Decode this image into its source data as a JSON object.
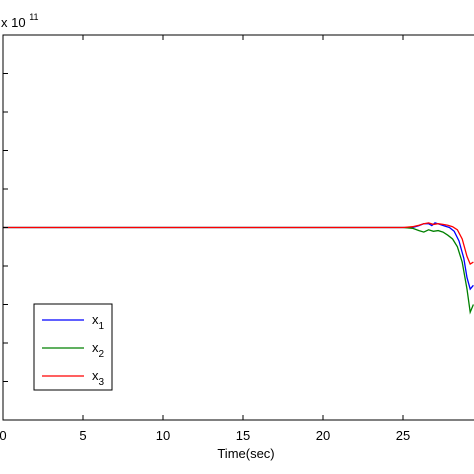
{
  "chart_data": {
    "type": "line",
    "title": "",
    "xlabel": "Time(sec)",
    "ylabel": "",
    "scale_text": {
      "base": "x 10",
      "exponent": "11"
    },
    "xlim": [
      0,
      30
    ],
    "x_ticks": [
      0,
      5,
      10,
      15,
      20,
      25
    ],
    "x_tick_labels": [
      "0",
      "5",
      "10",
      "15",
      "20",
      "25"
    ],
    "ylim": [
      -5,
      5
    ],
    "y_ticks": [
      -5,
      -4,
      -3,
      -2,
      -1,
      0,
      1,
      2,
      3,
      4,
      5
    ],
    "grid": false,
    "legend_position": "bottom-left",
    "series": [
      {
        "name": "x",
        "subscript": "1",
        "color": "#0000ff",
        "x": [
          0,
          5,
          10,
          15,
          20,
          25,
          25.6,
          26.0,
          26.3,
          26.6,
          26.8,
          27.0,
          27.3,
          27.6,
          27.9,
          28.2,
          28.5,
          28.8,
          29.0,
          29.2,
          29.4
        ],
        "y": [
          0,
          0,
          0,
          0,
          0,
          0,
          0,
          0.05,
          0.1,
          0.1,
          0.05,
          0.12,
          0.08,
          0.04,
          0.0,
          -0.1,
          -0.35,
          -0.8,
          -1.3,
          -1.6,
          -1.5
        ]
      },
      {
        "name": "x",
        "subscript": "2",
        "color": "#008000",
        "x": [
          0,
          5,
          10,
          15,
          20,
          25,
          25.6,
          26.0,
          26.3,
          26.6,
          26.9,
          27.2,
          27.5,
          27.8,
          28.1,
          28.4,
          28.7,
          29.0,
          29.2,
          29.4
        ],
        "y": [
          0,
          0,
          0,
          0,
          0,
          0,
          -0.02,
          -0.08,
          -0.12,
          -0.06,
          -0.1,
          -0.08,
          -0.12,
          -0.2,
          -0.3,
          -0.5,
          -0.9,
          -1.6,
          -2.2,
          -2.0
        ]
      },
      {
        "name": "x",
        "subscript": "3",
        "color": "#ff0000",
        "x": [
          0,
          5,
          10,
          15,
          20,
          25,
          25.6,
          26.0,
          26.3,
          26.6,
          26.9,
          27.2,
          27.5,
          27.8,
          28.1,
          28.4,
          28.7,
          29.0,
          29.2,
          29.4
        ],
        "y": [
          0,
          0,
          0,
          0,
          0,
          0,
          0.02,
          0.06,
          0.1,
          0.12,
          0.08,
          0.1,
          0.08,
          0.06,
          0.02,
          -0.06,
          -0.3,
          -0.75,
          -0.95,
          -0.9
        ]
      }
    ]
  }
}
